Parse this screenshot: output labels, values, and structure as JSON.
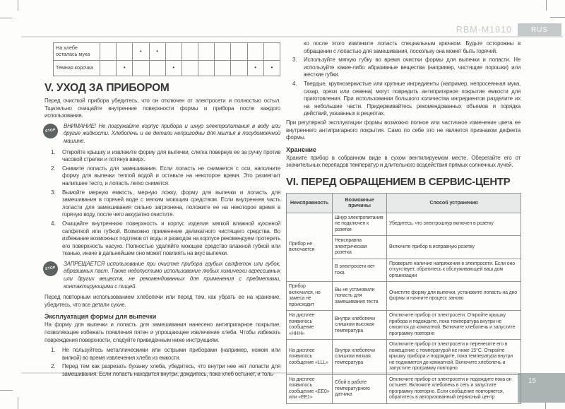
{
  "header": {
    "model": "RBM-M1910",
    "lang_tab": "RUS"
  },
  "footer": {
    "page_number": "15"
  },
  "colors": {
    "accent_gray": "#aab4b2",
    "tab_gray": "#c3cac9",
    "rule_gray": "#dcdfde",
    "stop_icon": "#5e6362",
    "table_header_bg": "#e8eaea"
  },
  "stop_label": "STOP",
  "dot": "•",
  "top_table": {
    "num_cols": 11,
    "rows": [
      {
        "label": "На хлебе осталась мука",
        "dots": [
          3,
          4
        ]
      },
      {
        "label": "Темная корочка",
        "dots": [
          2,
          5,
          10,
          11
        ]
      }
    ]
  },
  "section5": {
    "title": "V. УХОД ЗА ПРИБОРОМ",
    "intro": "Перед очисткой прибора убедитесь, что он отключен от электросети и полностью остыл. Тщательно очищайте внутренние поверхности формы и прибора после каждого использования.",
    "warning1": "ВНИМАНИЕ! Не погружайте корпус прибора и шнур электропитания в воду или другие жидкости. Хлебопечь и ее детали непригодны для мытья в посудомоечной машине.",
    "steps": [
      {
        "num": "1.",
        "text": "Откройте крышку и извлеките форму для выпечки, слегка повернув ее за ручку против часовой стрелки и потянув вверх."
      },
      {
        "num": "2.",
        "text": "Снимите лопасть для замешивания. Если лопасть не снимается с оси, наполните форму для выпечки теплой водой и оставьте на некоторое время. Это размягчит налипшее тесто, и лопасть легко снимется."
      },
      {
        "num": "3.",
        "text": "Вымойте мерную емкость, мерную ложку, форму для выпечки и лопасть для замешивания в горячей воде с мягким моющим средством. Если внутренняя часть лопасти для замешивания сильно загрязнена, положите ее на некоторое время в горячую воду, после чего аккуратно очистите."
      },
      {
        "num": "4.",
        "text": "Очищайте внутреннюю поверхность и корпус изделия мягкой влажной кухонной салфеткой или губкой. Возможно применение деликатного чистящего средства. Во избежание возможных подтеков от воды и разводов на корпусе рекомендуем протереть его поверхность насухо. Полностью удаляйте моющее средство влажной губкой или тканью, иначе в дальнейшем оно может повлиять на вкус выпечки."
      }
    ],
    "warning2": "ЗАПРЕЩАЕТСЯ использование при очистке прибора грубых салфеток или губок, абразивных паст. Также недопустимо использование любых химически агрессивных или других веществ, не рекомендованных для применения с предметами, контактирующими с пищей.",
    "note": "Перед повторным использованием хлебопечи или перед тем, как убрать ее на хранение, убедитесь, что все детали сухие."
  },
  "pan_section": {
    "title": "Эксплуатация формы для выпечки",
    "intro": "На форму для выпечки и лопасть для замешивания нанесено антипригарное покрытие, позволяющее избежать появления пятен и упрощающее извлечение хлеба. Чтобы избежать повреждения поверхности, следуйте приведенным ниже инструкциям.",
    "steps_left": [
      {
        "num": "1.",
        "text": "Не пользуйтесь металлическими или острыми приборами (например, ножом или вилкой) во время извлечения хлеба из емкости."
      },
      {
        "num": "2.",
        "text": "Перед тем как разрезать буханку хлеба, убедитесь, что внутри нее нет лопасти для замешивания. Если лопасть находится внутри, дождитесь, пока хлеб остынет, и толь-"
      }
    ],
    "steps_right": [
      {
        "num": "",
        "text": "ко после этого извлеките лопасть специальным крючком. Будьте осторожны в обращении с лопастью для замешивания, поскольку она может быть горячей."
      },
      {
        "num": "3.",
        "text": "Используйте мягкую губку во время очистки формы для выпечки и лопасти. Не используйте какие-либо абразивные вещества (например, чистящие порошки) или жесткие губки."
      },
      {
        "num": "4.",
        "text": "Твердые, крупнозернистые или крупные ингредиенты (например, непросеянная мука, сахар, орехи или семена) могут повредить антипригарное покрытие емкости для приготовления. При использовании большого количества ингредиентов разделите их на небольшие части. Придерживайтесь рекомендованных объемов и порядка действий, указанных в рецептах."
      }
    ],
    "discoloration_note": "При регулярной эксплуатации формы возможно полное или частичное изменение цвета ее внутреннего антипригарного покрытия. Само по себе это не является признаком дефекта формы."
  },
  "storage": {
    "title": "Хранение",
    "text": "Храните прибор в собранном виде в сухом вентилируемом месте. Оберегайте его от значительных перепадов температур и длительного воздействия прямых солнечных лучей."
  },
  "section6": {
    "title": "VI. ПЕРЕД ОБРАЩЕНИЕМ В СЕРВИС-ЦЕНТР",
    "table": {
      "headers": [
        "Неисправность",
        "Возможные причины",
        "Способ устранения"
      ],
      "rows": [
        {
          "fault": "Прибор не включается",
          "rowspan": 3,
          "cause": "Шнур электропитания не подключен к розетке",
          "fix": "Убедитесь, что электрошнур включен в розетку"
        },
        {
          "cause": "Неисправна электрическая розетка",
          "fix": "Включите прибор в исправную розетку"
        },
        {
          "cause": "В электросети нет тока",
          "fix": "Проверьте наличие напряжения в электросети. Если оно отсутствует, обратитесь к обслуживающей ваш дом организации"
        },
        {
          "fault": "Прибор включился, но замеса не происходит",
          "cause": "Вы не установили лопасть для замешивания теста",
          "fix": "Очистите форму для выпечки, установите лопасть на дно формы и начните процесс заново"
        },
        {
          "fault": "На дисплее появилось сообщение «HHH»",
          "cause": "Внутри хлебопечи слишком высокая температура",
          "fix": "Отключите прибор от электросети. Откройте крышку прибора и подождите, пока температура внутри не снизится до комнатной. Включите хлебопечь и запустите программу повторно"
        },
        {
          "fault": "На дисплее появилось сообщение «LLL»",
          "cause": "Внутри хлебопечи слишком низкая температура",
          "fix": "Отключите прибор от электросети и перенесите его в помещение с температурой не ниже 15°C. Откройте крышку прибора и подождите, пока температура внутри не поднимется до комнатной. Включите хлебопечь и запустите программу повторно"
        },
        {
          "fault": "На дисплее появилось сообщение «EE0» или «EE1»",
          "cause": "Сбой в работе температурного датчика",
          "fix": "Отключите прибор от электросети и подождите пока он остынет. Включите хлебопечь в сеть и запустите программу повторно. Если сообщение повторяется, обратитесь в авторизованный сервисный центр"
        }
      ]
    }
  }
}
